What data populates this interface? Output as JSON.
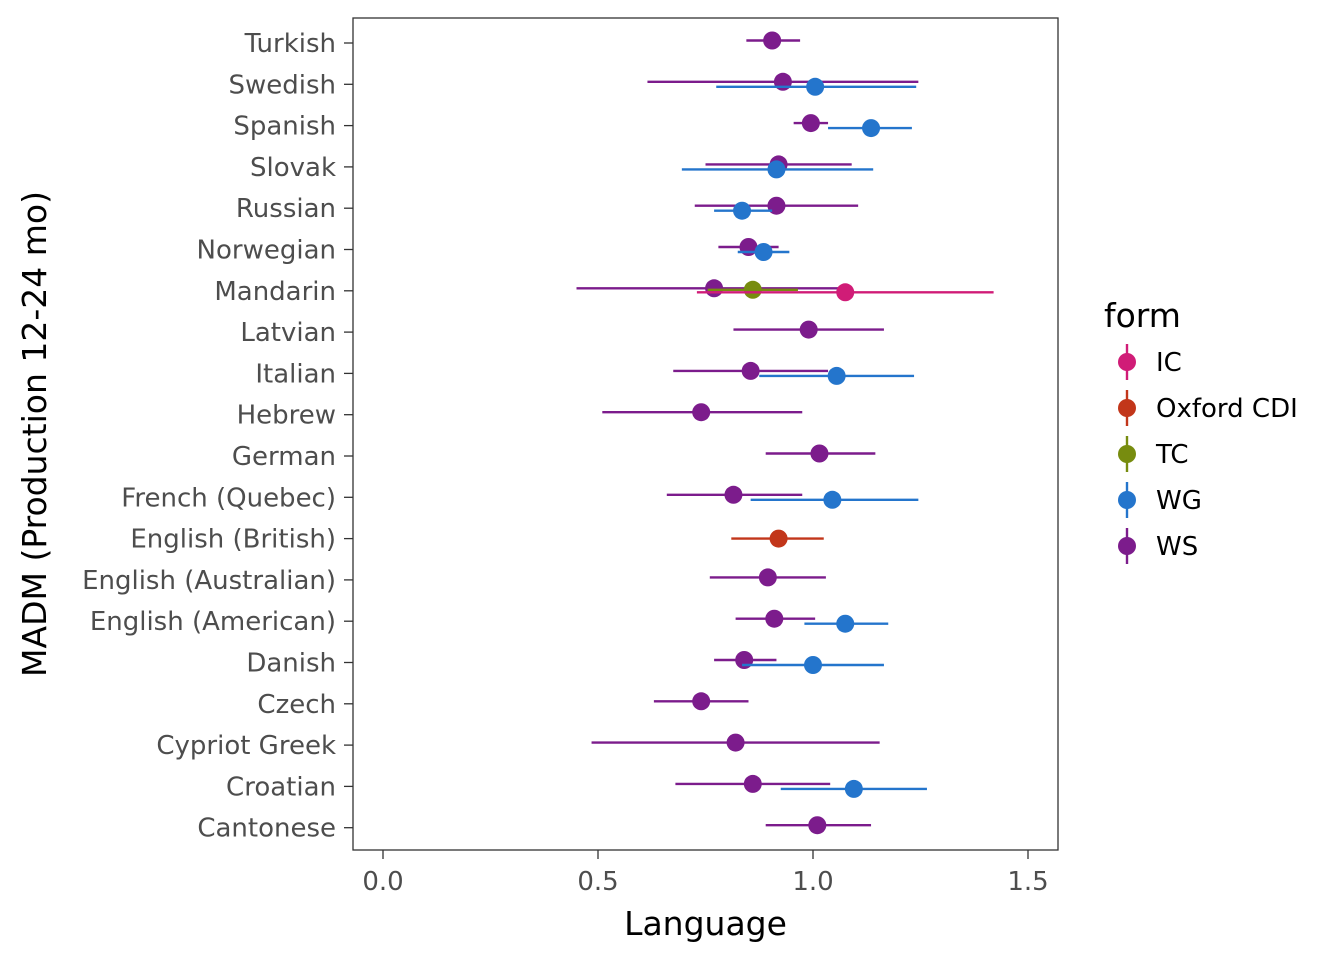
{
  "chart_data": {
    "type": "scatter",
    "subtype": "dot-with-interval",
    "xlabel": "Language",
    "ylabel": "MADM (Production 12-24 mo)",
    "xlim": [
      -0.07,
      1.57
    ],
    "x_ticks": [
      "0.0",
      "0.5",
      "1.0",
      "1.5"
    ],
    "x_tick_values": [
      0,
      0.5,
      1.0,
      1.5
    ],
    "grid": false,
    "legend": {
      "title": "form",
      "placement": "right",
      "entries": [
        {
          "name": "IC",
          "color": "#D01C77"
        },
        {
          "name": "Oxford CDI",
          "color": "#C2361A"
        },
        {
          "name": "TC",
          "color": "#778C0F"
        },
        {
          "name": "WG",
          "color": "#2475CC"
        },
        {
          "name": "WS",
          "color": "#7C1C8C"
        }
      ]
    },
    "categories": [
      "Turkish",
      "Swedish",
      "Spanish",
      "Slovak",
      "Russian",
      "Norwegian",
      "Mandarin",
      "Latvian",
      "Italian",
      "Hebrew",
      "German",
      "French (Quebec)",
      "English (British)",
      "English (Australian)",
      "English (American)",
      "Danish",
      "Czech",
      "Cypriot Greek",
      "Croatian",
      "Cantonese"
    ],
    "series": [
      {
        "name": "WS",
        "color": "#7C1C8C",
        "points": [
          {
            "category": "Turkish",
            "x": 0.905,
            "lo": 0.845,
            "hi": 0.97
          },
          {
            "category": "Swedish",
            "x": 0.93,
            "lo": 0.615,
            "hi": 1.245
          },
          {
            "category": "Spanish",
            "x": 0.995,
            "lo": 0.955,
            "hi": 1.035
          },
          {
            "category": "Slovak",
            "x": 0.92,
            "lo": 0.75,
            "hi": 1.09
          },
          {
            "category": "Russian",
            "x": 0.915,
            "lo": 0.725,
            "hi": 1.105
          },
          {
            "category": "Norwegian",
            "x": 0.85,
            "lo": 0.78,
            "hi": 0.92
          },
          {
            "category": "Mandarin",
            "x": 0.77,
            "lo": 0.45,
            "hi": 1.09
          },
          {
            "category": "Latvian",
            "x": 0.99,
            "lo": 0.815,
            "hi": 1.165
          },
          {
            "category": "Italian",
            "x": 0.855,
            "lo": 0.675,
            "hi": 1.035
          },
          {
            "category": "Hebrew",
            "x": 0.74,
            "lo": 0.51,
            "hi": 0.975
          },
          {
            "category": "German",
            "x": 1.015,
            "lo": 0.89,
            "hi": 1.145
          },
          {
            "category": "French (Quebec)",
            "x": 0.815,
            "lo": 0.66,
            "hi": 0.975
          },
          {
            "category": "English (Australian)",
            "x": 0.895,
            "lo": 0.76,
            "hi": 1.03
          },
          {
            "category": "English (American)",
            "x": 0.91,
            "lo": 0.82,
            "hi": 1.005
          },
          {
            "category": "Danish",
            "x": 0.84,
            "lo": 0.77,
            "hi": 0.915
          },
          {
            "category": "Czech",
            "x": 0.74,
            "lo": 0.63,
            "hi": 0.85
          },
          {
            "category": "Cypriot Greek",
            "x": 0.82,
            "lo": 0.485,
            "hi": 1.155
          },
          {
            "category": "Croatian",
            "x": 0.86,
            "lo": 0.68,
            "hi": 1.04
          },
          {
            "category": "Cantonese",
            "x": 1.01,
            "lo": 0.89,
            "hi": 1.135
          }
        ]
      },
      {
        "name": "WG",
        "color": "#2475CC",
        "points": [
          {
            "category": "Swedish",
            "x": 1.005,
            "lo": 0.775,
            "hi": 1.24
          },
          {
            "category": "Spanish",
            "x": 1.135,
            "lo": 1.035,
            "hi": 1.23
          },
          {
            "category": "Slovak",
            "x": 0.915,
            "lo": 0.695,
            "hi": 1.14
          },
          {
            "category": "Russian",
            "x": 0.835,
            "lo": 0.77,
            "hi": 0.905
          },
          {
            "category": "Norwegian",
            "x": 0.885,
            "lo": 0.825,
            "hi": 0.945
          },
          {
            "category": "Italian",
            "x": 1.055,
            "lo": 0.875,
            "hi": 1.235
          },
          {
            "category": "French (Quebec)",
            "x": 1.045,
            "lo": 0.855,
            "hi": 1.245
          },
          {
            "category": "English (American)",
            "x": 1.075,
            "lo": 0.98,
            "hi": 1.175
          },
          {
            "category": "Danish",
            "x": 1.0,
            "lo": 0.835,
            "hi": 1.165
          },
          {
            "category": "Croatian",
            "x": 1.095,
            "lo": 0.925,
            "hi": 1.265
          }
        ]
      },
      {
        "name": "IC",
        "color": "#D01C77",
        "points": [
          {
            "category": "Mandarin",
            "x": 1.075,
            "lo": 0.73,
            "hi": 1.42
          }
        ]
      },
      {
        "name": "TC",
        "color": "#778C0F",
        "points": [
          {
            "category": "Mandarin",
            "x": 0.86,
            "lo": 0.755,
            "hi": 0.965
          }
        ]
      },
      {
        "name": "Oxford CDI",
        "color": "#C2361A",
        "points": [
          {
            "category": "English (British)",
            "x": 0.92,
            "lo": 0.81,
            "hi": 1.025
          }
        ]
      }
    ]
  }
}
